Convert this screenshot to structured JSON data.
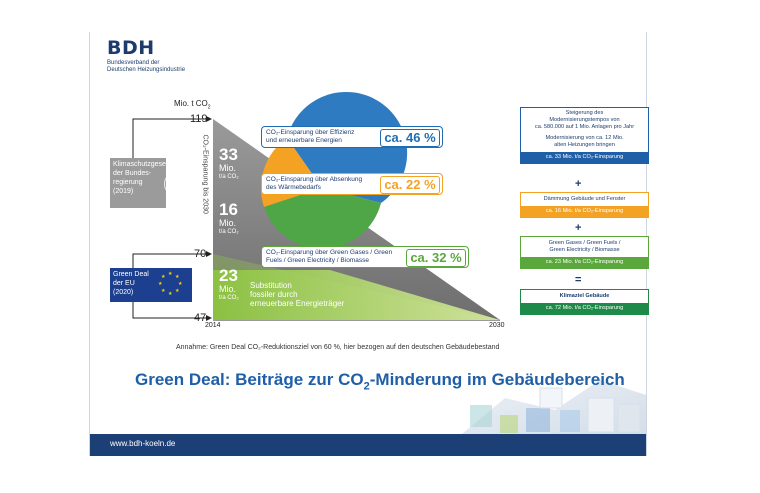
{
  "logo": {
    "name": "BDH",
    "subtitle_line1": "Bundesverband der",
    "subtitle_line2": "Deutschen Heizungsindustrie"
  },
  "axis": {
    "unit_label": "Mio. t CO",
    "unit_sub": "2",
    "side_label": "CO₂-Einsparung bis 2030",
    "ticks": [
      "119",
      "70",
      "47"
    ],
    "x_start": "2014",
    "x_end": "2030"
  },
  "left": {
    "klima": {
      "line1": "Klimaschutzgesetz",
      "line2": "der Bundes-",
      "line3": "regierung",
      "line4": "(2019)"
    },
    "greendeal": {
      "line1": "Green Deal",
      "line2": "der EU",
      "line3": "(2020)"
    }
  },
  "savings": [
    {
      "value": "33",
      "unit1": "Mio.",
      "unit2": "t/a CO₂"
    },
    {
      "value": "16",
      "unit1": "Mio.",
      "unit2": "t/a CO₂"
    },
    {
      "value": "23",
      "unit1": "Mio.",
      "unit2": "t/a CO₂"
    }
  ],
  "substitution": {
    "line1": "Substitution",
    "line2": "fossiler durch",
    "line3": "erneuerbare Energieträger"
  },
  "callouts": [
    {
      "line1": "CO₂-Einsparung über Effizienz",
      "line2": "und erneuerbare Energien",
      "pct": "ca. 46 %",
      "color": "#1f6eb5"
    },
    {
      "line1": "CO₂-Einsparung über Absenkung",
      "line2": "des Wärmebedarfs",
      "pct": "ca. 22 %",
      "color": "#f4a224"
    },
    {
      "line1": "CO₂-Einsparung über Green Gases / Green",
      "line2": "Fuels / Green Electricity / Biomasse",
      "pct": "ca. 32 %",
      "color": "#5aa83c"
    }
  ],
  "pie": {
    "slices": [
      46,
      22,
      32
    ],
    "colors": [
      "#2f7bc1",
      "#f4a224",
      "#4fa646"
    ]
  },
  "right_boxes": {
    "box1": {
      "line1": "Steigerung des",
      "line2": "Modernisierungstempos von",
      "line3": "ca. 580.000 auf 1 Mio. Anlagen pro Jahr",
      "line4": "Modernisierung von ca. 12 Mio.",
      "line5": "alten Heizungen bringen",
      "bar": "ca. 33 Mio. t/a CO₂-Einsparung",
      "color": "#1f5fa8"
    },
    "op1": "+",
    "box2": {
      "line1": "Dämmung Gebäude und Fenster",
      "bar": "ca. 16 Mio. t/a CO₂-Einsparung",
      "color": "#f4a224"
    },
    "op2": "+",
    "box3": {
      "line1": "Green Gases / Green Fuels /",
      "line2": "Green Electricity / Biomasse",
      "bar": "ca. 23 Mio. t/a CO₂-Einsparung",
      "color": "#5aa83c"
    },
    "op3": "=",
    "box4": {
      "line1": "Klimaziel Gebäude",
      "bar": "ca. 72 Mio. t/a CO₂-Einsparung",
      "color": "#1e8a4a"
    }
  },
  "note": "Annahme: Green Deal CO₂-Reduktionsziel von 60 %, hier bezogen auf den deutschen Gebäudebestand",
  "headline": {
    "part1": "Green Deal: Beiträge zur CO",
    "sub": "2",
    "part2": "-Minderung im Gebäudebereich"
  },
  "footer": {
    "url": "www.bdh-koeln.de"
  }
}
